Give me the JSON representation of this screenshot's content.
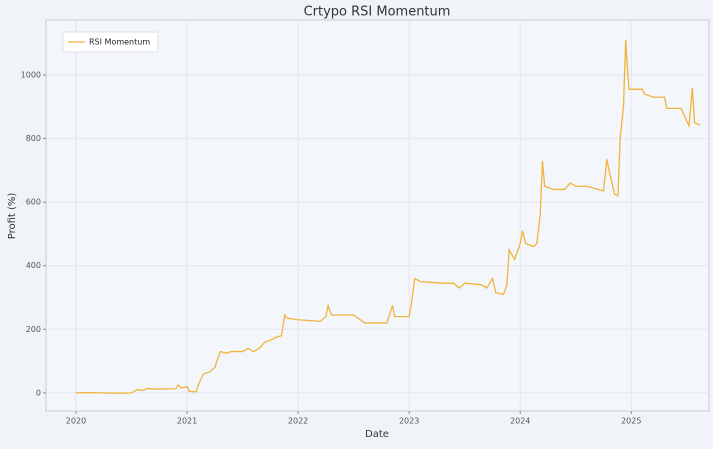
{
  "chart_data": {
    "type": "line",
    "title": "Crtypo RSI Momentum",
    "x_label": "Date",
    "y_label": "Profit (%)",
    "x": [
      2020.0,
      2020.1,
      2020.2,
      2020.4,
      2020.5,
      2020.55,
      2020.6,
      2020.65,
      2020.7,
      2020.9,
      2020.92,
      2020.95,
      2021.0,
      2021.02,
      2021.08,
      2021.12,
      2021.15,
      2021.2,
      2021.25,
      2021.3,
      2021.35,
      2021.4,
      2021.5,
      2021.55,
      2021.6,
      2021.65,
      2021.7,
      2021.75,
      2021.8,
      2021.85,
      2021.88,
      2021.9,
      2022.0,
      2022.2,
      2022.25,
      2022.27,
      2022.3,
      2022.5,
      2022.6,
      2022.8,
      2022.85,
      2022.87,
      2023.0,
      2023.02,
      2023.05,
      2023.1,
      2023.3,
      2023.4,
      2023.45,
      2023.5,
      2023.65,
      2023.7,
      2023.75,
      2023.78,
      2023.85,
      2023.88,
      2023.9,
      2023.95,
      2024.0,
      2024.02,
      2024.05,
      2024.12,
      2024.15,
      2024.18,
      2024.2,
      2024.22,
      2024.3,
      2024.4,
      2024.45,
      2024.5,
      2024.6,
      2024.7,
      2024.75,
      2024.78,
      2024.8,
      2024.85,
      2024.88,
      2024.9,
      2024.93,
      2024.95,
      2024.97,
      2024.98,
      2025.1,
      2025.12,
      2025.2,
      2025.3,
      2025.32,
      2025.45,
      2025.48,
      2025.52,
      2025.55,
      2025.57,
      2025.6,
      2025.62
    ],
    "series": [
      {
        "name": "RSI Momentum",
        "color": "#f0b43c",
        "values": [
          0,
          1,
          0,
          -1,
          0,
          10,
          8,
          14,
          12,
          13,
          25,
          15,
          20,
          5,
          3,
          40,
          60,
          65,
          80,
          130,
          125,
          130,
          130,
          140,
          130,
          140,
          160,
          165,
          175,
          180,
          245,
          235,
          230,
          225,
          240,
          275,
          245,
          245,
          220,
          220,
          275,
          240,
          240,
          280,
          360,
          350,
          345,
          345,
          330,
          345,
          340,
          330,
          360,
          315,
          310,
          340,
          450,
          420,
          470,
          510,
          470,
          460,
          470,
          560,
          730,
          650,
          640,
          640,
          660,
          650,
          650,
          640,
          635,
          735,
          700,
          625,
          620,
          800,
          900,
          1110,
          1000,
          955,
          955,
          940,
          930,
          930,
          895,
          895,
          870,
          840,
          960,
          850,
          845,
          843
        ]
      }
    ],
    "xlim": [
      2019.73,
      2025.7
    ],
    "xticks": [
      2020,
      2021,
      2022,
      2023,
      2024,
      2025
    ],
    "ylim": [
      -57,
      1173
    ],
    "yticks": [
      0,
      200,
      400,
      600,
      800,
      1000
    ],
    "grid": true,
    "legend": "upper left"
  }
}
